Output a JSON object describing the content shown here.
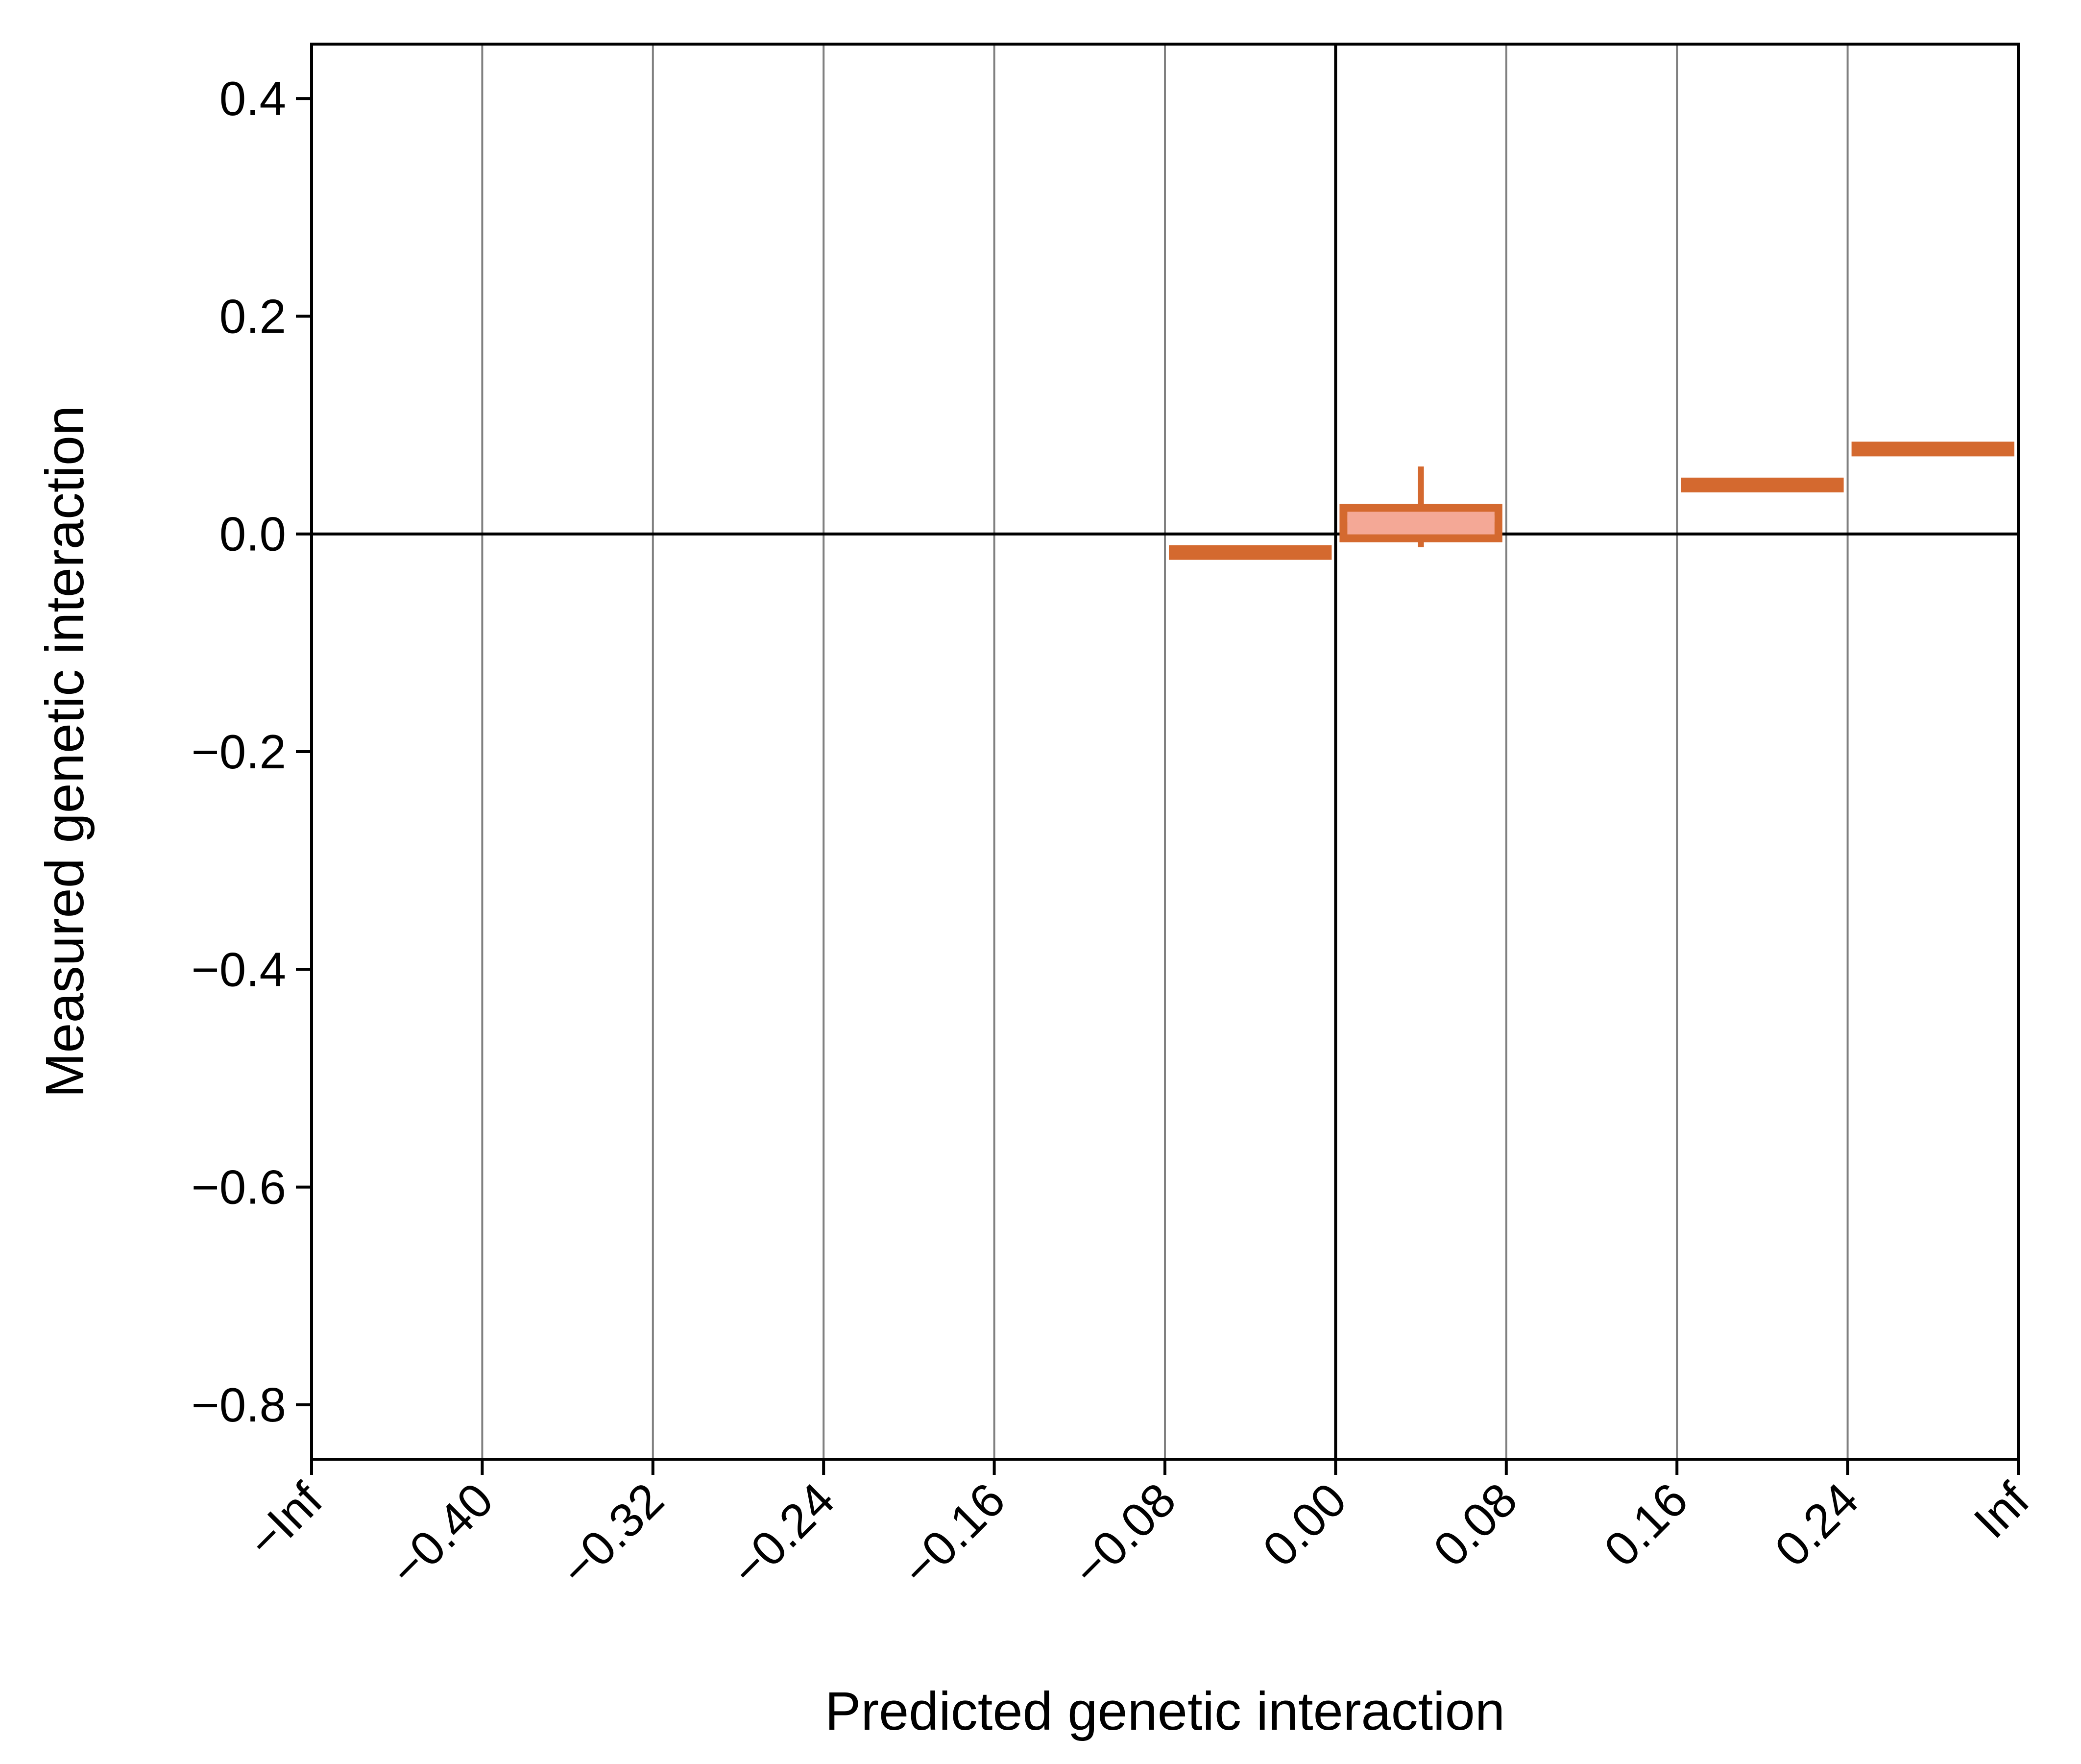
{
  "chart_data": {
    "type": "box",
    "title": "",
    "xlabel": "Predicted genetic interaction",
    "ylabel": "Measured genetic interaction",
    "x_tick_labels": [
      "−Inf",
      "−0.40",
      "−0.32",
      "−0.24",
      "−0.16",
      "−0.08",
      "0.00",
      "0.08",
      "0.16",
      "0.24",
      "Inf"
    ],
    "y_ticks": [
      0.4,
      0.2,
      0.0,
      -0.2,
      -0.4,
      -0.6,
      -0.8
    ],
    "y_tick_labels": [
      "0.4",
      "0.2",
      "0.0",
      "−0.2",
      "−0.4",
      "−0.6",
      "−0.8"
    ],
    "ylim": [
      -0.85,
      0.45
    ],
    "grid": "vertical lines at bin edges",
    "reference_lines": {
      "x": "0.00",
      "y": 0.0
    },
    "bins": [
      {
        "bin": [
          "−0.08",
          "0.00"
        ],
        "median": -0.017,
        "q1": -0.017,
        "q3": -0.017,
        "whisker_low": -0.017,
        "whisker_high": -0.017
      },
      {
        "bin": [
          "0.00",
          "0.08"
        ],
        "median": 0.014,
        "q1": -0.004,
        "q3": 0.024,
        "whisker_low": -0.012,
        "whisker_high": 0.062
      },
      {
        "bin": [
          "0.16",
          "0.24"
        ],
        "median": 0.045,
        "q1": 0.045,
        "q3": 0.045,
        "whisker_low": 0.045,
        "whisker_high": 0.045
      },
      {
        "bin": [
          "0.24",
          "Inf"
        ],
        "median": 0.078,
        "q1": 0.078,
        "q3": 0.078,
        "whisker_low": 0.078,
        "whisker_high": 0.078
      }
    ],
    "colors": {
      "box": "#d4692f",
      "median": "#f4a896",
      "grid": "#808080",
      "axes": "#000000"
    }
  }
}
